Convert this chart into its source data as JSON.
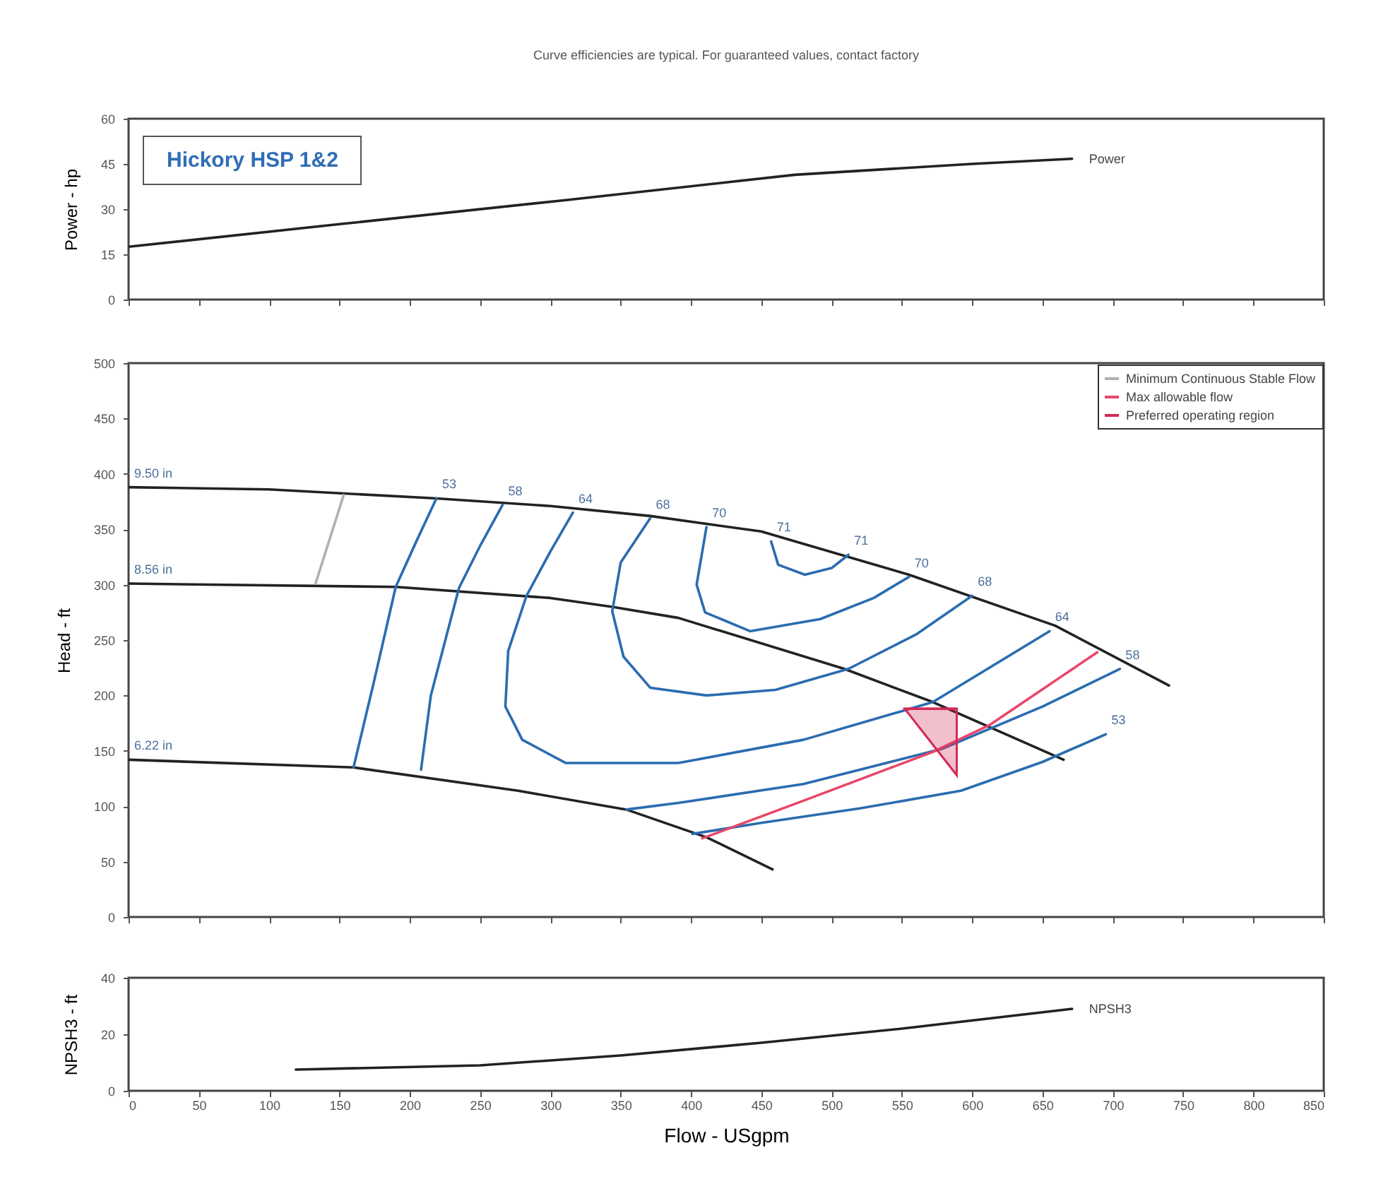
{
  "chart_data": [
    {
      "type": "line",
      "title": "Curve efficiencies are typical. For guaranteed values, contact factory",
      "ylabel": "Power - hp",
      "annotations": [
        "Hickory HSP 1&2"
      ],
      "xlim": [
        0,
        850
      ],
      "xticks": [
        0,
        50,
        100,
        150,
        200,
        250,
        300,
        350,
        400,
        450,
        500,
        550,
        600,
        650,
        700,
        750,
        800,
        850
      ],
      "ylim": [
        0,
        60
      ],
      "yticks": [
        0,
        15,
        30,
        45,
        60
      ],
      "tick_labels": "y",
      "legend": false,
      "grid": false,
      "marker": "none",
      "series": [
        {
          "name": "Power",
          "color": "#222222",
          "x": [
            0,
            150,
            311,
            474,
            600,
            671
          ],
          "values": [
            17.5,
            25,
            33,
            41.4,
            45,
            46.7
          ]
        }
      ]
    },
    {
      "type": "line",
      "ylabel": "Head - ft",
      "xlim": [
        0,
        850
      ],
      "xticks": [
        0,
        50,
        100,
        150,
        200,
        250,
        300,
        350,
        400,
        450,
        500,
        550,
        600,
        650,
        700,
        750,
        800,
        850
      ],
      "ylim": [
        0,
        500
      ],
      "yticks": [
        0,
        50,
        100,
        150,
        200,
        250,
        300,
        350,
        400,
        450,
        500
      ],
      "tick_labels": "y",
      "legend": "top right",
      "grid": false,
      "marker": "none",
      "annotations": [
        {
          "text": "9.50 in",
          "x": 0,
          "y": 388
        },
        {
          "text": "8.56 in",
          "x": 0,
          "y": 301
        },
        {
          "text": "6.22 in",
          "x": 0,
          "y": 142
        },
        {
          "text": "53",
          "x": 219,
          "y": 378
        },
        {
          "text": "58",
          "x": 266,
          "y": 372
        },
        {
          "text": "64",
          "x": 316,
          "y": 365
        },
        {
          "text": "68",
          "x": 371,
          "y": 360
        },
        {
          "text": "70",
          "x": 411,
          "y": 352
        },
        {
          "text": "71",
          "x": 457,
          "y": 339
        },
        {
          "text": "71",
          "x": 512,
          "y": 327
        },
        {
          "text": "70",
          "x": 555,
          "y": 307
        },
        {
          "text": "68",
          "x": 600,
          "y": 290
        },
        {
          "text": "64",
          "x": 655,
          "y": 258
        },
        {
          "text": "58",
          "x": 705,
          "y": 224
        },
        {
          "text": "53",
          "x": 695,
          "y": 165
        }
      ],
      "series": [
        {
          "color": "#222222",
          "x": [
            0,
            100,
            217,
            300,
            371,
            450,
            555,
            659,
            740
          ],
          "values": [
            388,
            386,
            378,
            371,
            362,
            348,
            309,
            263,
            209
          ]
        },
        {
          "color": "#222222",
          "x": [
            0,
            190,
            300,
            344,
            391,
            509,
            572,
            665
          ],
          "values": [
            301,
            298,
            288,
            280,
            270,
            224,
            194,
            142
          ]
        },
        {
          "color": "#222222",
          "x": [
            0,
            160,
            277,
            354,
            411,
            458
          ],
          "values": [
            142,
            135,
            114,
            97,
            72,
            43
          ]
        },
        {
          "color": "#2b6cb0",
          "x": [
            219,
            205,
            190,
            175,
            160
          ],
          "values": [
            378,
            340,
            298,
            215,
            135
          ]
        },
        {
          "color": "#2b6cb0",
          "x": [
            266,
            250,
            235,
            215,
            208
          ],
          "values": [
            372,
            335,
            297,
            200,
            133
          ]
        },
        {
          "color": "#2b6cb0",
          "x": [
            316,
            300,
            283,
            270,
            268,
            280,
            311,
            391,
            480,
            572,
            655
          ],
          "values": [
            365,
            330,
            290,
            240,
            190,
            160,
            139,
            139,
            160,
            194,
            258
          ]
        },
        {
          "color": "#2b6cb0",
          "x": [
            371,
            350,
            344,
            352,
            371,
            411,
            460,
            512,
            560,
            600
          ],
          "values": [
            360,
            320,
            276,
            235,
            207,
            200,
            205,
            224,
            255,
            290
          ]
        },
        {
          "color": "#2b6cb0",
          "x": [
            411,
            404,
            410,
            442,
            492,
            530,
            555
          ],
          "values": [
            352,
            300,
            275,
            258,
            269,
            288,
            307
          ]
        },
        {
          "color": "#2b6cb0",
          "x": [
            457,
            462,
            481,
            500,
            512
          ],
          "values": [
            339,
            318,
            309,
            315,
            327
          ]
        },
        {
          "color": "#2b6cb0",
          "x": [
            354,
            391,
            480,
            579,
            650,
            705
          ],
          "values": [
            97,
            103,
            120,
            152,
            190,
            224
          ]
        },
        {
          "color": "#2b6cb0",
          "x": [
            401,
            450,
            520,
            592,
            650,
            695
          ],
          "values": [
            75,
            85,
            98,
            114,
            140,
            165
          ]
        },
        {
          "name": "Minimum Continuous Stable Flow",
          "color": "#b0b0b0",
          "x": [
            153,
            133
          ],
          "values": [
            381,
            301
          ]
        },
        {
          "name": "Max allowable flow",
          "color": "#e8476a",
          "x": [
            408,
            480,
            572,
            612,
            689
          ],
          "values": [
            71,
            105,
            149,
            173,
            239
          ]
        },
        {
          "name": "Preferred operating region",
          "color": "#d42a55",
          "x": [
            552,
            589
          ],
          "values": [
            188,
            188
          ],
          "lower": [
            188,
            128
          ],
          "upper": [
            188,
            188
          ]
        }
      ]
    },
    {
      "type": "line",
      "ylabel": "NPSH3 - ft",
      "xlabel": "Flow - USgpm",
      "xlim": [
        0,
        850
      ],
      "xticks": [
        0,
        50,
        100,
        150,
        200,
        250,
        300,
        350,
        400,
        450,
        500,
        550,
        600,
        650,
        700,
        750,
        800,
        850
      ],
      "ylim": [
        0,
        40
      ],
      "yticks": [
        0,
        20,
        40
      ],
      "legend": false,
      "grid": false,
      "marker": "none",
      "series": [
        {
          "name": "NPSH3",
          "color": "#222222",
          "x": [
            119,
            250,
            350,
            450,
            550,
            671
          ],
          "values": [
            7.5,
            9,
            12.5,
            17,
            22,
            29
          ]
        }
      ]
    }
  ]
}
